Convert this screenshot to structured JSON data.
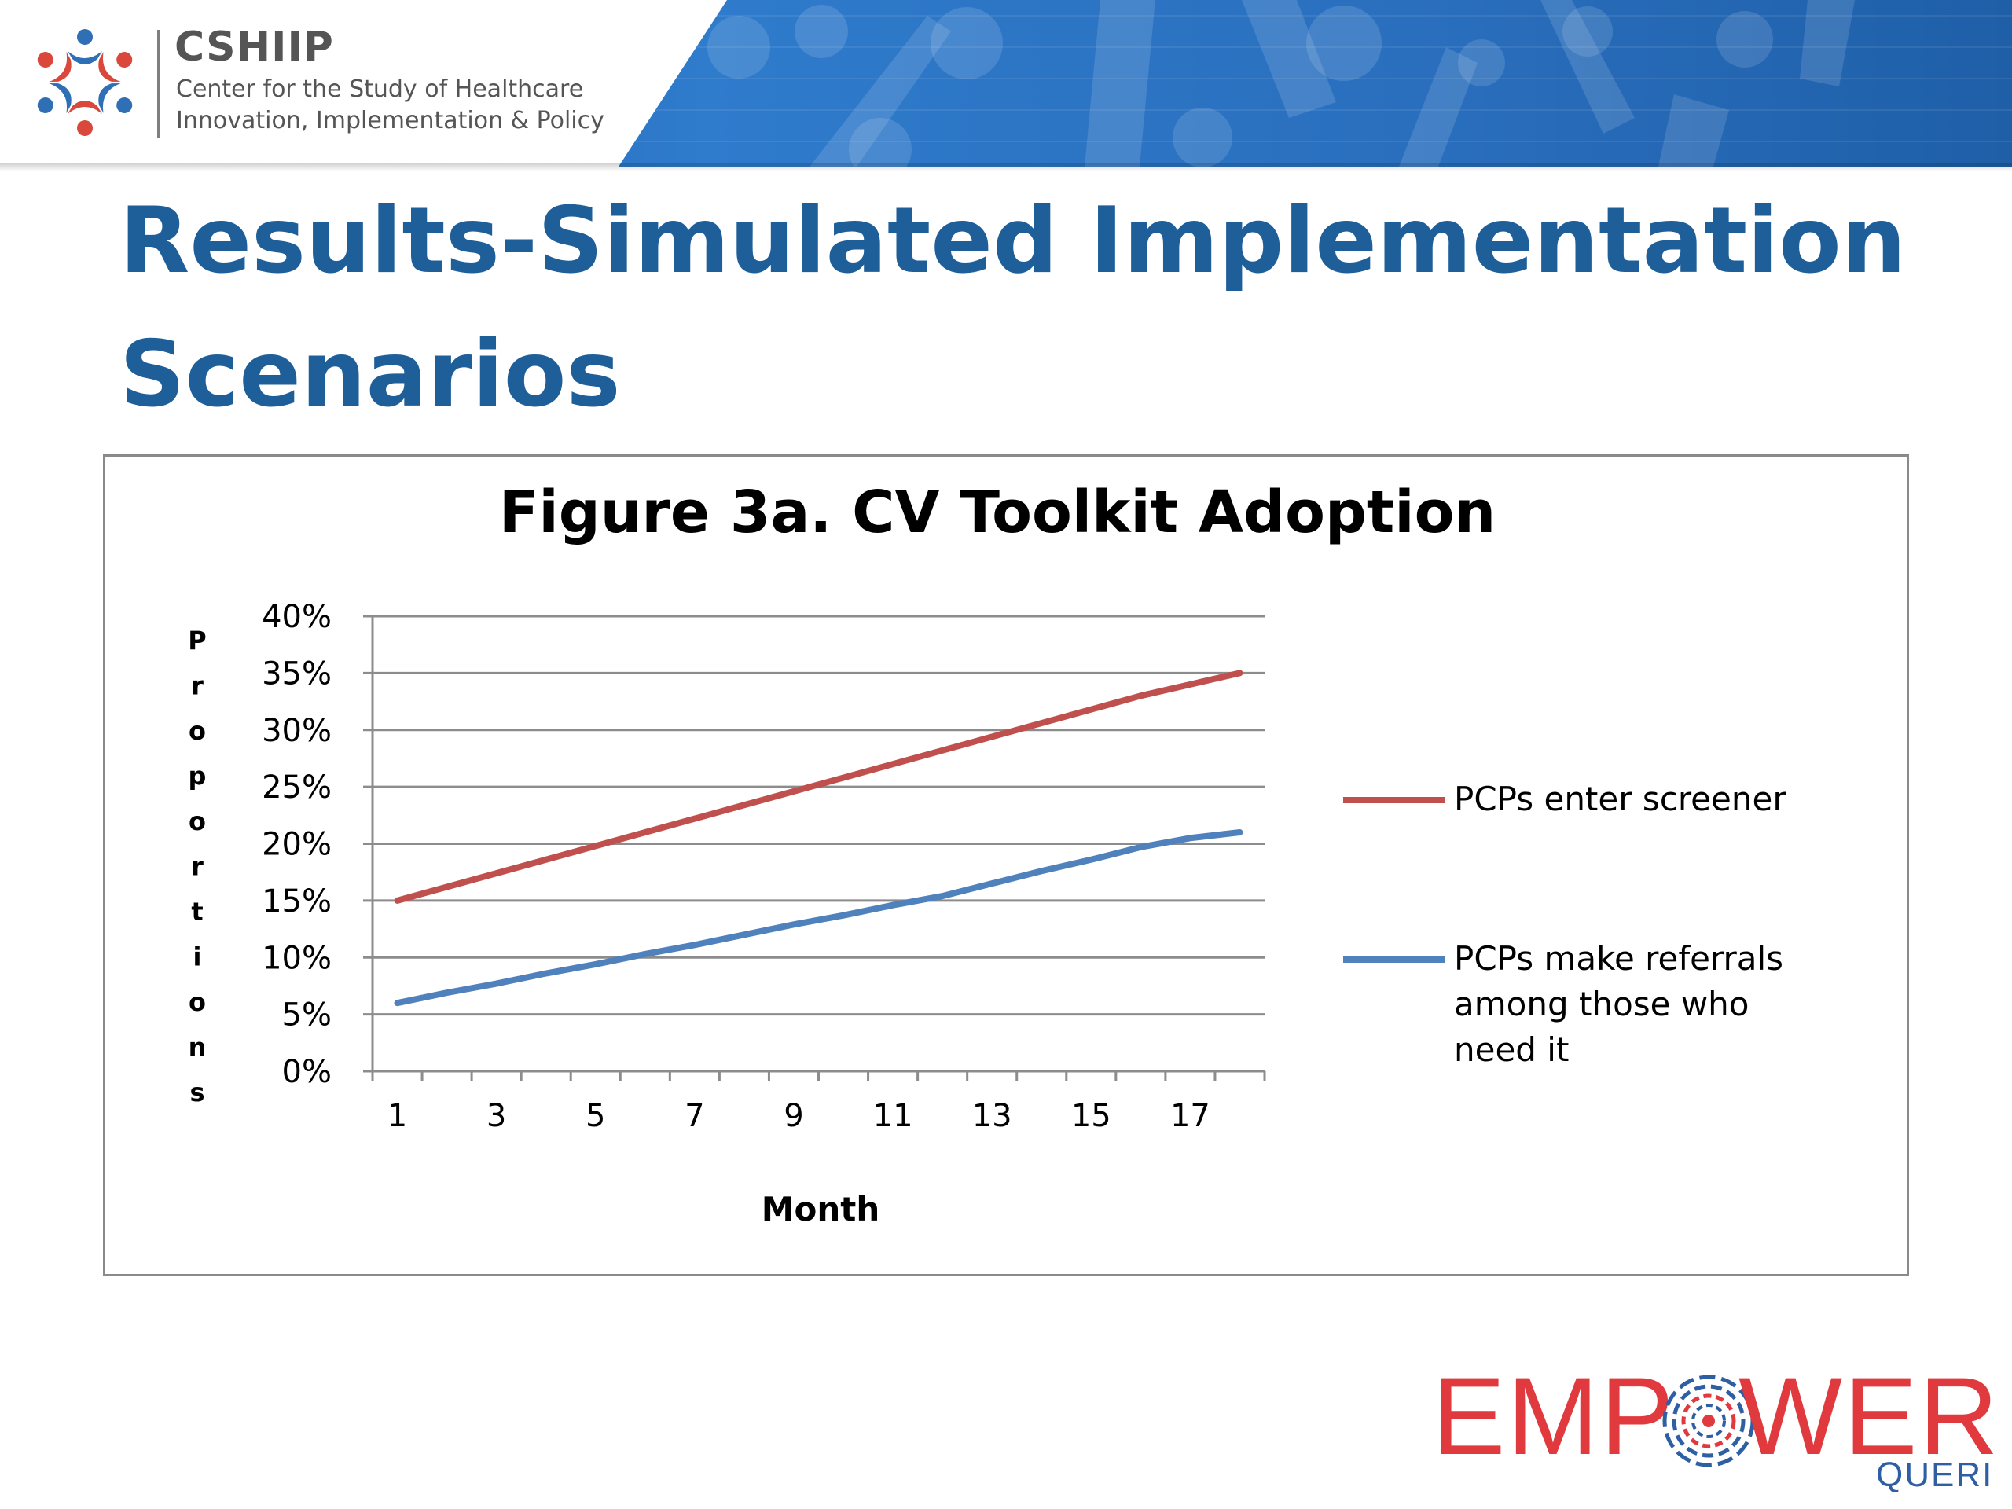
{
  "header": {
    "org_acronym": "CSHIIP",
    "org_name_line1": "Center for the Study of Healthcare",
    "org_name_line2": "Innovation, Implementation & Policy"
  },
  "slide": {
    "title": "Results-Simulated Implementation Scenarios"
  },
  "footer": {
    "logo_left": "EMP",
    "logo_right": "WER",
    "logo_sub": "QUERI"
  },
  "colors": {
    "title": "#1f5f99",
    "red_series": "#c0504d",
    "blue_series": "#4f81bd",
    "empower_red": "#e0393e",
    "queri_blue": "#2e5fa3"
  },
  "chart_data": {
    "type": "line",
    "title": "Figure 3a. CV Toolkit Adoption",
    "xlabel": "Month",
    "ylabel": "Proportions",
    "x": [
      1,
      2,
      3,
      4,
      5,
      6,
      7,
      8,
      9,
      10,
      11,
      12,
      13,
      14,
      15,
      16,
      17,
      18
    ],
    "x_tick_labels": [
      "1",
      "3",
      "5",
      "7",
      "9",
      "11",
      "13",
      "15",
      "17"
    ],
    "y_tick_labels": [
      "0%",
      "5%",
      "10%",
      "15%",
      "20%",
      "25%",
      "30%",
      "35%",
      "40%"
    ],
    "ylim": [
      0,
      40
    ],
    "grid": true,
    "legend_position": "right",
    "series": [
      {
        "name": "PCPs enter screener",
        "color": "#c0504d",
        "values": [
          15.0,
          16.2,
          17.4,
          18.6,
          19.8,
          21.0,
          22.2,
          23.4,
          24.6,
          25.8,
          27.0,
          28.2,
          29.4,
          30.6,
          31.8,
          33.0,
          34.0,
          35.0
        ]
      },
      {
        "name": "PCPs make referrals among those who need it",
        "legend_lines": [
          "PCPs make referrals",
          "among those who",
          "need it"
        ],
        "color": "#4f81bd",
        "values": [
          6.0,
          6.9,
          7.7,
          8.6,
          9.4,
          10.3,
          11.1,
          12.0,
          12.9,
          13.7,
          14.6,
          15.4,
          16.5,
          17.6,
          18.6,
          19.7,
          20.5,
          21.0
        ]
      }
    ]
  }
}
